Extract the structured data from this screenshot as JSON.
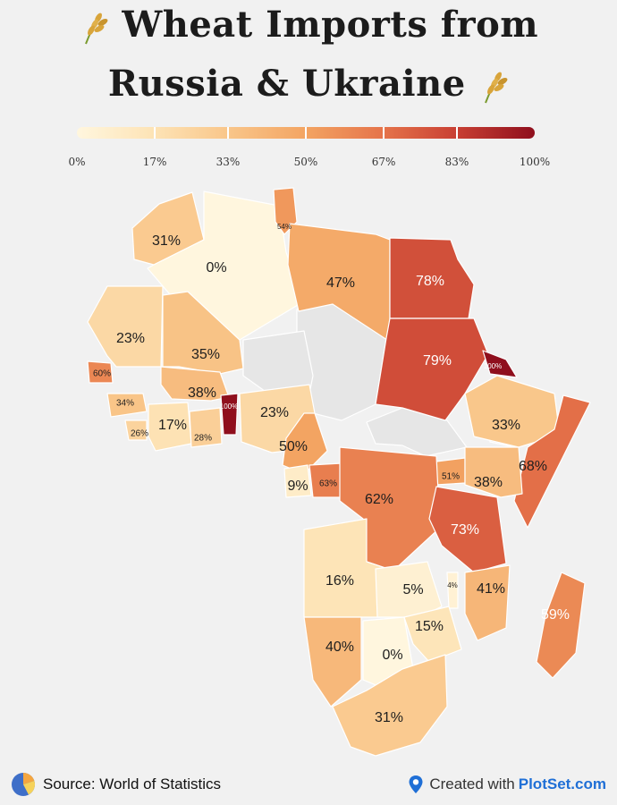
{
  "title_line1": "Wheat Imports from",
  "title_line2": "Russia & Ukraine",
  "legend": {
    "ticks": [
      {
        "value": 0,
        "label": "0%"
      },
      {
        "value": 17,
        "label": "17%"
      },
      {
        "value": 33,
        "label": "33%"
      },
      {
        "value": 50,
        "label": "50%"
      },
      {
        "value": 67,
        "label": "67%"
      },
      {
        "value": 83,
        "label": "83%"
      },
      {
        "value": 100,
        "label": "100%"
      }
    ],
    "colors": [
      "#fff6de",
      "#fde3b5",
      "#f9c68a",
      "#f3a462",
      "#e5734a",
      "#c83f33",
      "#8f0f1d"
    ]
  },
  "regions": [
    {
      "label": "31%",
      "value": 31
    },
    {
      "label": "0%",
      "value": 0
    },
    {
      "label": "54%",
      "value": 54
    },
    {
      "label": "47%",
      "value": 47
    },
    {
      "label": "78%",
      "value": 78
    },
    {
      "label": "23%",
      "value": 23
    },
    {
      "label": "35%",
      "value": 35
    },
    {
      "label": "79%",
      "value": 79
    },
    {
      "label": "100%",
      "value": 100
    },
    {
      "label": "60%",
      "value": 60
    },
    {
      "label": "38%",
      "value": 38
    },
    {
      "label": "100%",
      "value": 100
    },
    {
      "label": "23%",
      "value": 23
    },
    {
      "label": "34%",
      "value": 34
    },
    {
      "label": "17%",
      "value": 17
    },
    {
      "label": "26%",
      "value": 26
    },
    {
      "label": "28%",
      "value": 28
    },
    {
      "label": "33%",
      "value": 33
    },
    {
      "label": "50%",
      "value": 50
    },
    {
      "label": "68%",
      "value": 68
    },
    {
      "label": "51%",
      "value": 51
    },
    {
      "label": "38%",
      "value": 38
    },
    {
      "label": "9%",
      "value": 9
    },
    {
      "label": "63%",
      "value": 63
    },
    {
      "label": "62%",
      "value": 62
    },
    {
      "label": "73%",
      "value": 73
    },
    {
      "label": "16%",
      "value": 16
    },
    {
      "label": "5%",
      "value": 5
    },
    {
      "label": "41%",
      "value": 41
    },
    {
      "label": "4%",
      "value": 4
    },
    {
      "label": "59%",
      "value": 59
    },
    {
      "label": "15%",
      "value": 15
    },
    {
      "label": "40%",
      "value": 40
    },
    {
      "label": "0%",
      "value": 0
    },
    {
      "label": "31%",
      "value": 31
    }
  ],
  "footer": {
    "source": "Source: World of Statistics",
    "created_with": "Created with",
    "brand": "PlotSet.com"
  }
}
